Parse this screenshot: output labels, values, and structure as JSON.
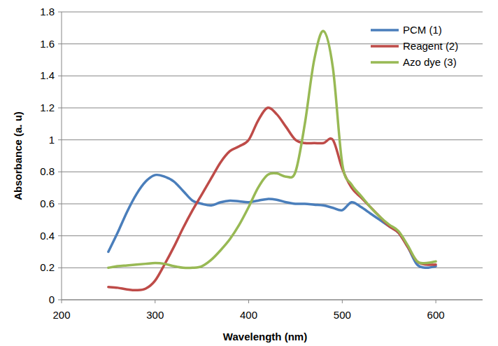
{
  "chart_data": {
    "type": "line",
    "x_label": "Wavelength (nm)",
    "y_label": "Absorbance (a. u)",
    "x": [
      250,
      260,
      270,
      280,
      290,
      300,
      310,
      320,
      330,
      340,
      350,
      360,
      370,
      380,
      390,
      400,
      410,
      420,
      430,
      440,
      450,
      460,
      470,
      480,
      490,
      500,
      510,
      520,
      530,
      540,
      550,
      560,
      570,
      580,
      590,
      600
    ],
    "series": [
      {
        "name": "PCM (1)",
        "color": "#4a7ebb",
        "values": [
          0.3,
          0.42,
          0.55,
          0.66,
          0.74,
          0.78,
          0.77,
          0.74,
          0.68,
          0.62,
          0.6,
          0.59,
          0.61,
          0.62,
          0.615,
          0.61,
          0.62,
          0.63,
          0.625,
          0.61,
          0.6,
          0.6,
          0.595,
          0.59,
          0.575,
          0.56,
          0.61,
          0.58,
          0.54,
          0.5,
          0.46,
          0.42,
          0.33,
          0.22,
          0.2,
          0.21
        ]
      },
      {
        "name": "Reagent (2)",
        "color": "#be4b48",
        "values": [
          0.08,
          0.075,
          0.065,
          0.06,
          0.07,
          0.12,
          0.22,
          0.33,
          0.45,
          0.56,
          0.66,
          0.76,
          0.86,
          0.93,
          0.96,
          1.0,
          1.12,
          1.2,
          1.16,
          1.08,
          1.0,
          0.98,
          0.98,
          0.98,
          1.0,
          0.82,
          0.7,
          0.64,
          0.58,
          0.52,
          0.46,
          0.42,
          0.33,
          0.24,
          0.22,
          0.22
        ]
      },
      {
        "name": "Azo dye (3)",
        "color": "#98b954",
        "values": [
          0.2,
          0.21,
          0.215,
          0.22,
          0.225,
          0.23,
          0.225,
          0.21,
          0.2,
          0.2,
          0.21,
          0.25,
          0.31,
          0.38,
          0.47,
          0.58,
          0.7,
          0.78,
          0.79,
          0.77,
          0.8,
          1.1,
          1.5,
          1.68,
          1.45,
          0.85,
          0.72,
          0.65,
          0.58,
          0.52,
          0.47,
          0.43,
          0.34,
          0.24,
          0.23,
          0.24
        ]
      }
    ],
    "xlim": [
      200,
      650
    ],
    "xticks": [
      200,
      300,
      400,
      500,
      600
    ],
    "ylim": [
      0,
      1.8
    ],
    "yticks": [
      0,
      0.2,
      0.4,
      0.6,
      0.8,
      1,
      1.2,
      1.4,
      1.6,
      1.8
    ],
    "grid": true,
    "legend": "top-right"
  }
}
